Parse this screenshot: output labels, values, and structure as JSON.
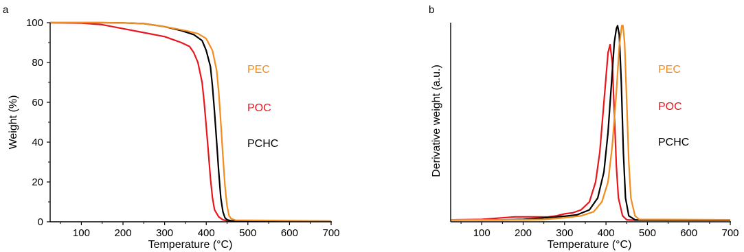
{
  "chart_data": [
    {
      "panel": "a",
      "type": "line",
      "xlabel": "Temperature (°C)",
      "ylabel": "Weight (%)",
      "xlim": [
        25,
        700
      ],
      "ylim": [
        0,
        100
      ],
      "xticks": [
        100,
        200,
        300,
        400,
        500,
        600,
        700
      ],
      "yticks": [
        0,
        20,
        40,
        60,
        80,
        100
      ],
      "grid": false,
      "legend": {
        "placement": "inside-right",
        "entries": [
          {
            "text": "PEC",
            "color": "#f28c1e"
          },
          {
            "text": "POC",
            "color": "#e8161c"
          },
          {
            "text": "PCHC",
            "color": "#000000"
          }
        ]
      },
      "series": [
        {
          "name": "POC",
          "color": "#e8161c",
          "x": [
            25,
            100,
            150,
            200,
            250,
            300,
            340,
            360,
            370,
            380,
            390,
            395,
            400,
            405,
            410,
            415,
            420,
            430,
            440,
            450,
            700
          ],
          "y": [
            100,
            99.8,
            99,
            97,
            95,
            93,
            90,
            88,
            85,
            80,
            70,
            60,
            48,
            35,
            22,
            12,
            6,
            2.5,
            1,
            0.5,
            0.3
          ]
        },
        {
          "name": "PCHC",
          "color": "#000000",
          "x": [
            25,
            150,
            200,
            250,
            300,
            340,
            370,
            390,
            400,
            410,
            415,
            420,
            425,
            430,
            435,
            440,
            445,
            450,
            460,
            700
          ],
          "y": [
            100,
            100,
            99.9,
            99.5,
            98,
            96,
            94,
            91,
            86,
            78,
            68,
            55,
            40,
            25,
            12,
            5,
            2,
            1,
            0.5,
            0.3
          ]
        },
        {
          "name": "PEC",
          "color": "#f28c1e",
          "x": [
            25,
            150,
            200,
            250,
            300,
            350,
            380,
            400,
            415,
            425,
            430,
            435,
            440,
            445,
            450,
            455,
            460,
            470,
            700
          ],
          "y": [
            100,
            100,
            99.9,
            99.5,
            98,
            96,
            94.5,
            92,
            86,
            76,
            65,
            50,
            33,
            18,
            8,
            3,
            1.5,
            0.8,
            0.4
          ]
        }
      ]
    },
    {
      "panel": "b",
      "type": "line",
      "xlabel": "Temperature (°C)",
      "ylabel": "Derivative weight (a.u.)",
      "xlim": [
        25,
        700
      ],
      "ylim": [
        0,
        1
      ],
      "xticks": [
        100,
        200,
        300,
        400,
        500,
        600,
        700
      ],
      "yticks": [],
      "grid": false,
      "legend": {
        "placement": "inside-right",
        "entries": [
          {
            "text": "PEC",
            "color": "#f28c1e"
          },
          {
            "text": "POC",
            "color": "#e8161c"
          },
          {
            "text": "PCHC",
            "color": "#000000"
          }
        ]
      },
      "series": [
        {
          "name": "POC",
          "color": "#e8161c",
          "x": [
            25,
            100,
            150,
            180,
            220,
            260,
            280,
            300,
            320,
            340,
            360,
            375,
            385,
            395,
            405,
            410,
            415,
            420,
            425,
            430,
            440,
            450,
            470,
            700
          ],
          "y": [
            0.01,
            0.012,
            0.02,
            0.025,
            0.025,
            0.024,
            0.03,
            0.04,
            0.045,
            0.06,
            0.1,
            0.2,
            0.35,
            0.6,
            0.85,
            0.89,
            0.8,
            0.55,
            0.28,
            0.12,
            0.03,
            0.01,
            0.008,
            0.008
          ]
        },
        {
          "name": "PCHC",
          "color": "#000000",
          "x": [
            25,
            150,
            200,
            250,
            280,
            300,
            330,
            360,
            380,
            395,
            405,
            415,
            420,
            425,
            428,
            432,
            437,
            442,
            447,
            455,
            470,
            700
          ],
          "y": [
            0.01,
            0.01,
            0.012,
            0.02,
            0.025,
            0.028,
            0.035,
            0.06,
            0.12,
            0.25,
            0.45,
            0.75,
            0.9,
            0.97,
            0.985,
            0.94,
            0.7,
            0.35,
            0.12,
            0.03,
            0.01,
            0.008
          ]
        },
        {
          "name": "PEC",
          "color": "#f28c1e",
          "x": [
            25,
            200,
            250,
            300,
            340,
            370,
            390,
            405,
            415,
            425,
            432,
            438,
            441,
            445,
            450,
            455,
            460,
            470,
            480,
            700
          ],
          "y": [
            0.01,
            0.01,
            0.012,
            0.02,
            0.03,
            0.05,
            0.1,
            0.2,
            0.38,
            0.65,
            0.88,
            0.985,
            0.985,
            0.9,
            0.6,
            0.3,
            0.12,
            0.03,
            0.012,
            0.01
          ]
        }
      ]
    }
  ]
}
